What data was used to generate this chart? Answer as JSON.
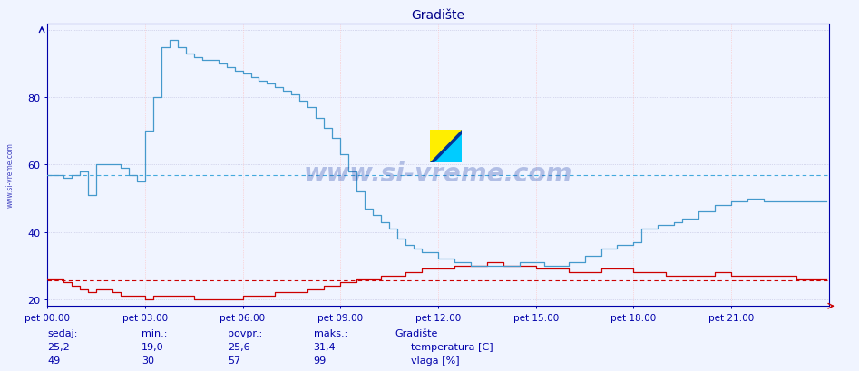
{
  "title": "Gradište",
  "bg_color": "#f0f4ff",
  "plot_bg_color": "#f0f4ff",
  "temp_color": "#cc0000",
  "humid_color": "#4499cc",
  "temp_avg": 25.6,
  "temp_min": 19.0,
  "temp_max": 31.4,
  "temp_now": 25.2,
  "humid_avg": 57,
  "humid_min": 30,
  "humid_max": 99,
  "humid_now": 49,
  "watermark": "www.si-vreme.com",
  "legend_title": "Gradište",
  "legend_temp": "temperatura [C]",
  "legend_humid": "vlaga [%]",
  "label_sedaj": "sedaj:",
  "label_min": "min.:",
  "label_povpr": "povpr.:",
  "label_maks": "maks.:",
  "xtick_labels": [
    "pet 00:00",
    "pet 03:00",
    "pet 06:00",
    "pet 09:00",
    "pet 12:00",
    "pet 15:00",
    "pet 18:00",
    "pet 21:00"
  ],
  "yticks": [
    20,
    40,
    60,
    80
  ],
  "ylim_min": 18,
  "ylim_max": 102,
  "xlim_min": 0,
  "xlim_max": 288,
  "title_color": "#000088",
  "axis_color": "#0000aa",
  "hgrid_color": "#bbbbdd",
  "vgrid_color": "#ffbbbb",
  "avg_temp_color": "#cc0000",
  "avg_humid_color": "#44aadd"
}
